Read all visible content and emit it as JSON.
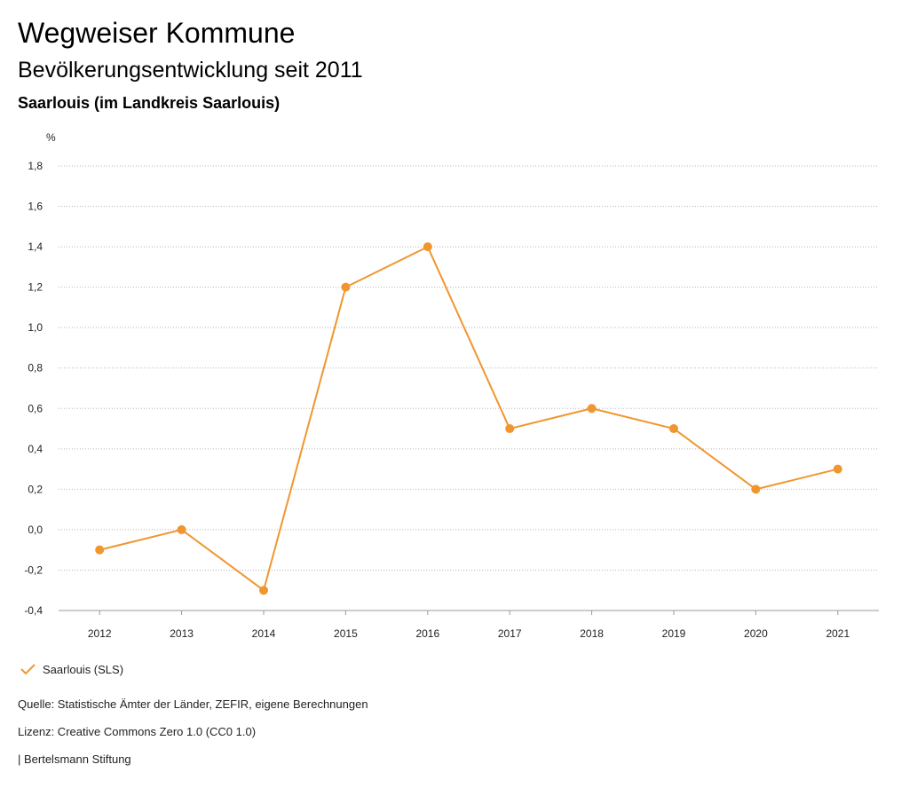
{
  "header": {
    "title": "Wegweiser Kommune",
    "subtitle": "Bevölkerungsentwicklung seit 2011",
    "place": "Saarlouis (im Landkreis Saarlouis)"
  },
  "chart_data": {
    "type": "line",
    "title": "Bevölkerungsentwicklung seit 2011",
    "unit_label": "%",
    "x": [
      "2012",
      "2013",
      "2014",
      "2015",
      "2016",
      "2017",
      "2018",
      "2019",
      "2020",
      "2021"
    ],
    "series": [
      {
        "name": "Saarlouis (SLS)",
        "color": "#f0962f",
        "values": [
          -0.1,
          0.0,
          -0.3,
          1.2,
          1.4,
          0.5,
          0.6,
          0.5,
          0.2,
          0.3
        ]
      }
    ],
    "ylim": [
      -0.4,
      1.8
    ],
    "yticks": [
      -0.4,
      -0.2,
      0.0,
      0.2,
      0.4,
      0.6,
      0.8,
      1.0,
      1.2,
      1.4,
      1.6,
      1.8
    ],
    "ytick_labels": [
      "-0,4",
      "-0,2",
      "0,0",
      "0,2",
      "0,4",
      "0,6",
      "0,8",
      "1,0",
      "1,2",
      "1,4",
      "1,6",
      "1,8"
    ],
    "grid": true,
    "grid_style": "dotted",
    "legend_position": "bottom-left"
  },
  "legend": {
    "label": "Saarlouis (SLS)",
    "icon": "check-icon",
    "color": "#f0962f"
  },
  "footer": {
    "source": "Quelle: Statistische Ämter der Länder, ZEFIR, eigene Berechnungen",
    "license": "Lizenz: Creative Commons Zero 1.0 (CC0 1.0)",
    "publisher": "| Bertelsmann Stiftung"
  }
}
